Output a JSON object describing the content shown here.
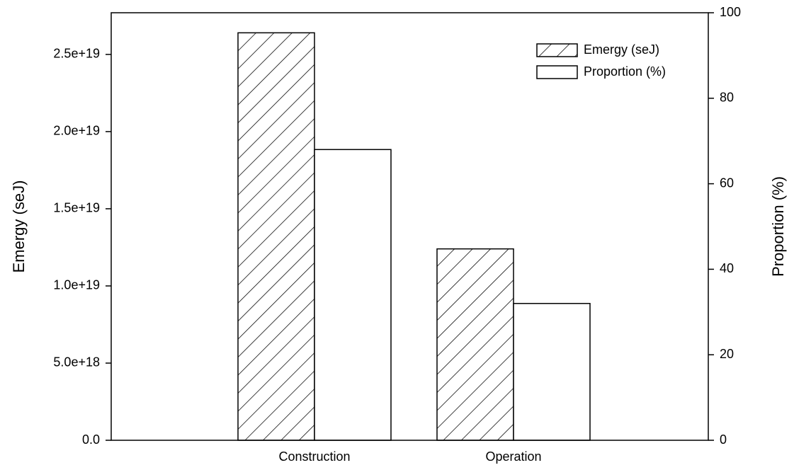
{
  "chart_data": {
    "type": "bar",
    "categories": [
      "Construction",
      "Operation"
    ],
    "series": [
      {
        "name": "Emergy (seJ)",
        "color": "#ffffff",
        "hatch": true,
        "values": [
          2.64e+19,
          1.24e+19
        ]
      },
      {
        "name": "Proportion (%)",
        "color": "#ffffff",
        "hatch": false,
        "axis": "y2",
        "values": [
          68,
          32
        ]
      }
    ],
    "ylabel": "Emergy (seJ)",
    "y2label": "Proportion (%)",
    "ylim": [
      0,
      2.77e+19
    ],
    "yticks": [
      {
        "value": 0,
        "label": "0.0"
      },
      {
        "value": 5e+18,
        "label": "5.0e+18"
      },
      {
        "value": 1e+19,
        "label": "1.0e+19"
      },
      {
        "value": 1.5e+19,
        "label": "1.5e+19"
      },
      {
        "value": 2e+19,
        "label": "2.0e+19"
      },
      {
        "value": 2.5e+19,
        "label": "2.5e+19"
      }
    ],
    "y2lim": [
      0,
      100
    ],
    "y2ticks": [
      0,
      20,
      40,
      60,
      80,
      100
    ],
    "legend": "upper right"
  }
}
